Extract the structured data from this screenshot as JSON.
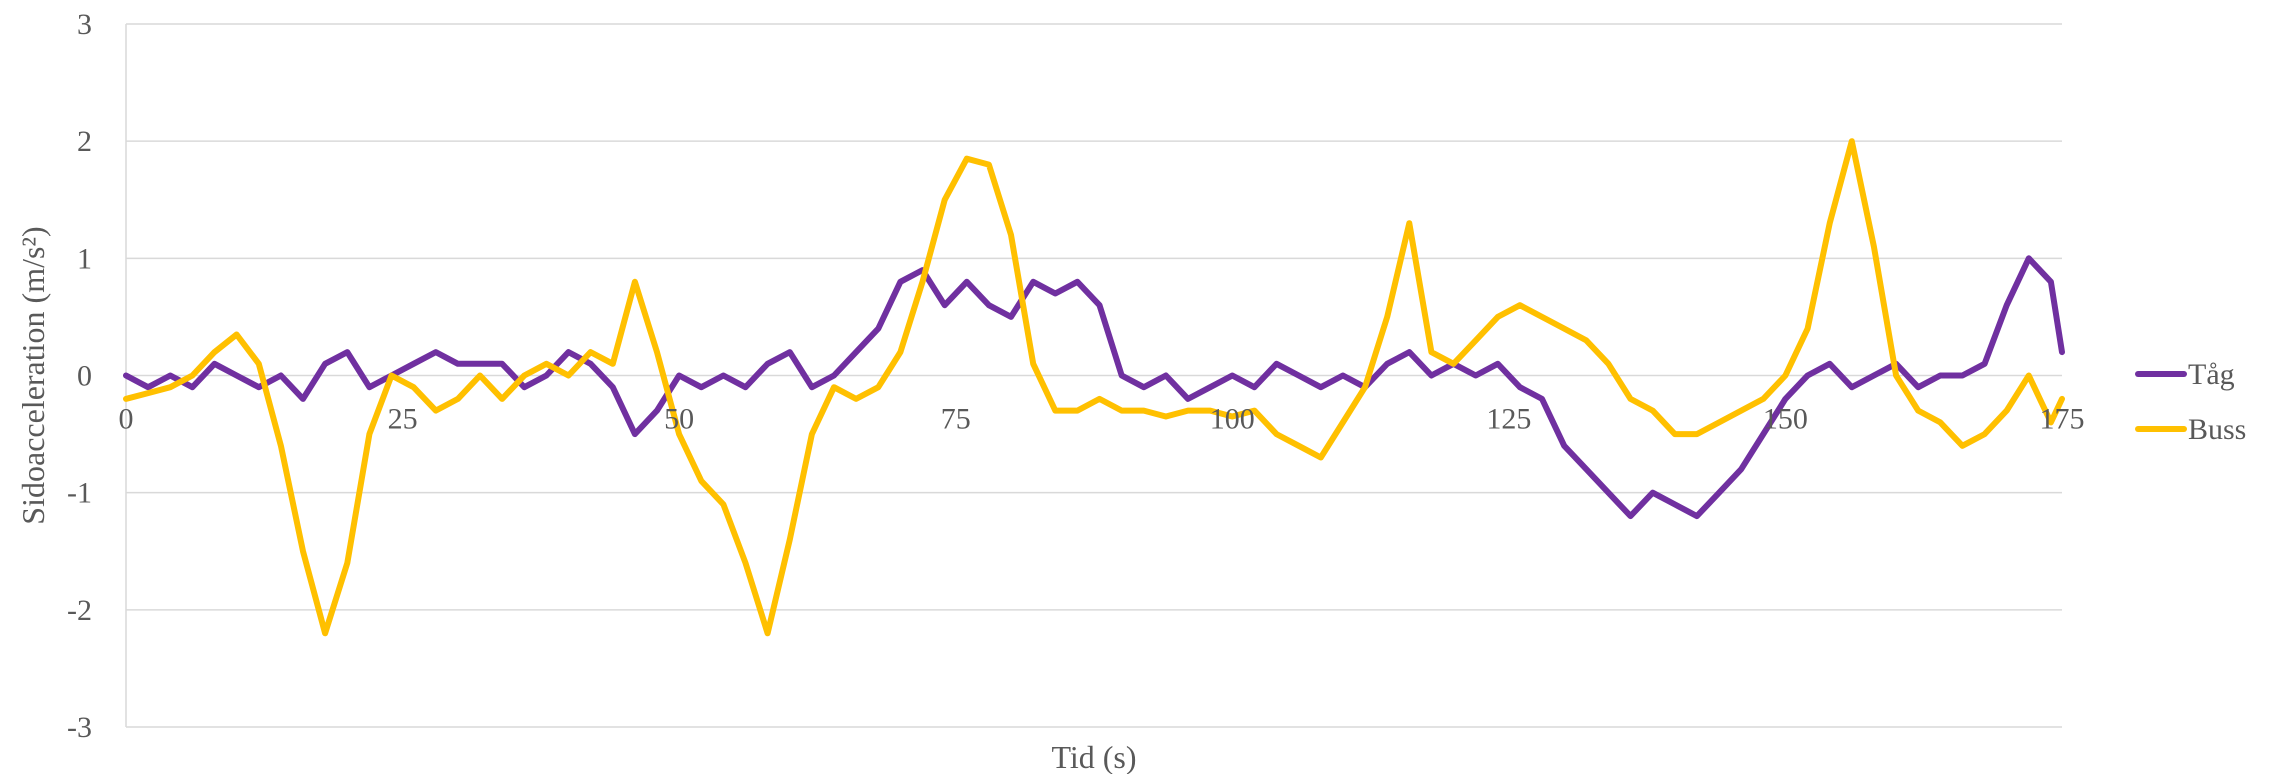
{
  "chart_data": {
    "type": "line",
    "xlabel": "Tid (s)",
    "ylabel": "Sidoacceleration (m/s²)",
    "xlim": [
      0,
      175
    ],
    "ylim": [
      -3,
      3
    ],
    "xticks": [
      0,
      25,
      50,
      75,
      100,
      125,
      150,
      175
    ],
    "yticks": [
      -3,
      -2,
      -1,
      0,
      1,
      2,
      3
    ],
    "grid": "horizontal",
    "legend_position": "right",
    "x": [
      0,
      2,
      4,
      6,
      8,
      10,
      12,
      14,
      16,
      18,
      20,
      22,
      24,
      26,
      28,
      30,
      32,
      34,
      36,
      38,
      40,
      42,
      44,
      46,
      48,
      50,
      52,
      54,
      56,
      58,
      60,
      62,
      64,
      66,
      68,
      70,
      72,
      74,
      76,
      78,
      80,
      82,
      84,
      86,
      88,
      90,
      92,
      94,
      96,
      98,
      100,
      102,
      104,
      106,
      108,
      110,
      112,
      114,
      116,
      118,
      120,
      122,
      124,
      126,
      128,
      130,
      132,
      134,
      136,
      138,
      140,
      142,
      144,
      146,
      148,
      150,
      152,
      154,
      156,
      158,
      160,
      162,
      164,
      166,
      168,
      170,
      172,
      174,
      175
    ],
    "series": [
      {
        "name": "Tåg",
        "color": "#7030a0",
        "values": [
          0,
          -0.1,
          0,
          -0.1,
          0.1,
          0,
          -0.1,
          0,
          -0.2,
          0.1,
          0.2,
          -0.1,
          0,
          0.1,
          0.2,
          0.1,
          0.1,
          0.1,
          -0.1,
          0,
          0.2,
          0.1,
          -0.1,
          -0.5,
          -0.3,
          0,
          -0.1,
          0,
          -0.1,
          0.1,
          0.2,
          -0.1,
          0,
          0.2,
          0.4,
          0.8,
          0.9,
          0.6,
          0.8,
          0.6,
          0.5,
          0.8,
          0.7,
          0.8,
          0.6,
          0,
          -0.1,
          0,
          -0.2,
          -0.1,
          0,
          -0.1,
          0.1,
          0,
          -0.1,
          0,
          -0.1,
          0.1,
          0.2,
          0,
          0.1,
          0,
          0.1,
          -0.1,
          -0.2,
          -0.6,
          -0.8,
          -1,
          -1.2,
          -1,
          -1.1,
          -1.2,
          -1,
          -0.8,
          -0.5,
          -0.2,
          0,
          0.1,
          -0.1,
          0,
          0.1,
          -0.1,
          0,
          0,
          0.1,
          0.6,
          1,
          0.8,
          0.2
        ]
      },
      {
        "name": "Buss",
        "color": "#ffc000",
        "values": [
          -0.2,
          -0.15,
          -0.1,
          0,
          0.2,
          0.35,
          0.1,
          -0.6,
          -1.5,
          -2.2,
          -1.6,
          -0.5,
          0,
          -0.1,
          -0.3,
          -0.2,
          0,
          -0.2,
          0,
          0.1,
          0,
          0.2,
          0.1,
          0.8,
          0.2,
          -0.5,
          -0.9,
          -1.1,
          -1.6,
          -2.2,
          -1.4,
          -0.5,
          -0.1,
          -0.2,
          -0.1,
          0.2,
          0.8,
          1.5,
          1.85,
          1.8,
          1.2,
          0.1,
          -0.3,
          -0.3,
          -0.2,
          -0.3,
          -0.3,
          -0.35,
          -0.3,
          -0.3,
          -0.35,
          -0.3,
          -0.5,
          -0.6,
          -0.7,
          -0.4,
          -0.1,
          0.5,
          1.3,
          0.2,
          0.1,
          0.3,
          0.5,
          0.6,
          0.5,
          0.4,
          0.3,
          0.1,
          -0.2,
          -0.3,
          -0.5,
          -0.5,
          -0.4,
          -0.3,
          -0.2,
          0,
          0.4,
          1.3,
          2,
          1.1,
          0,
          -0.3,
          -0.4,
          -0.6,
          -0.5,
          -0.3,
          0,
          -0.4,
          -0.2
        ]
      }
    ]
  }
}
